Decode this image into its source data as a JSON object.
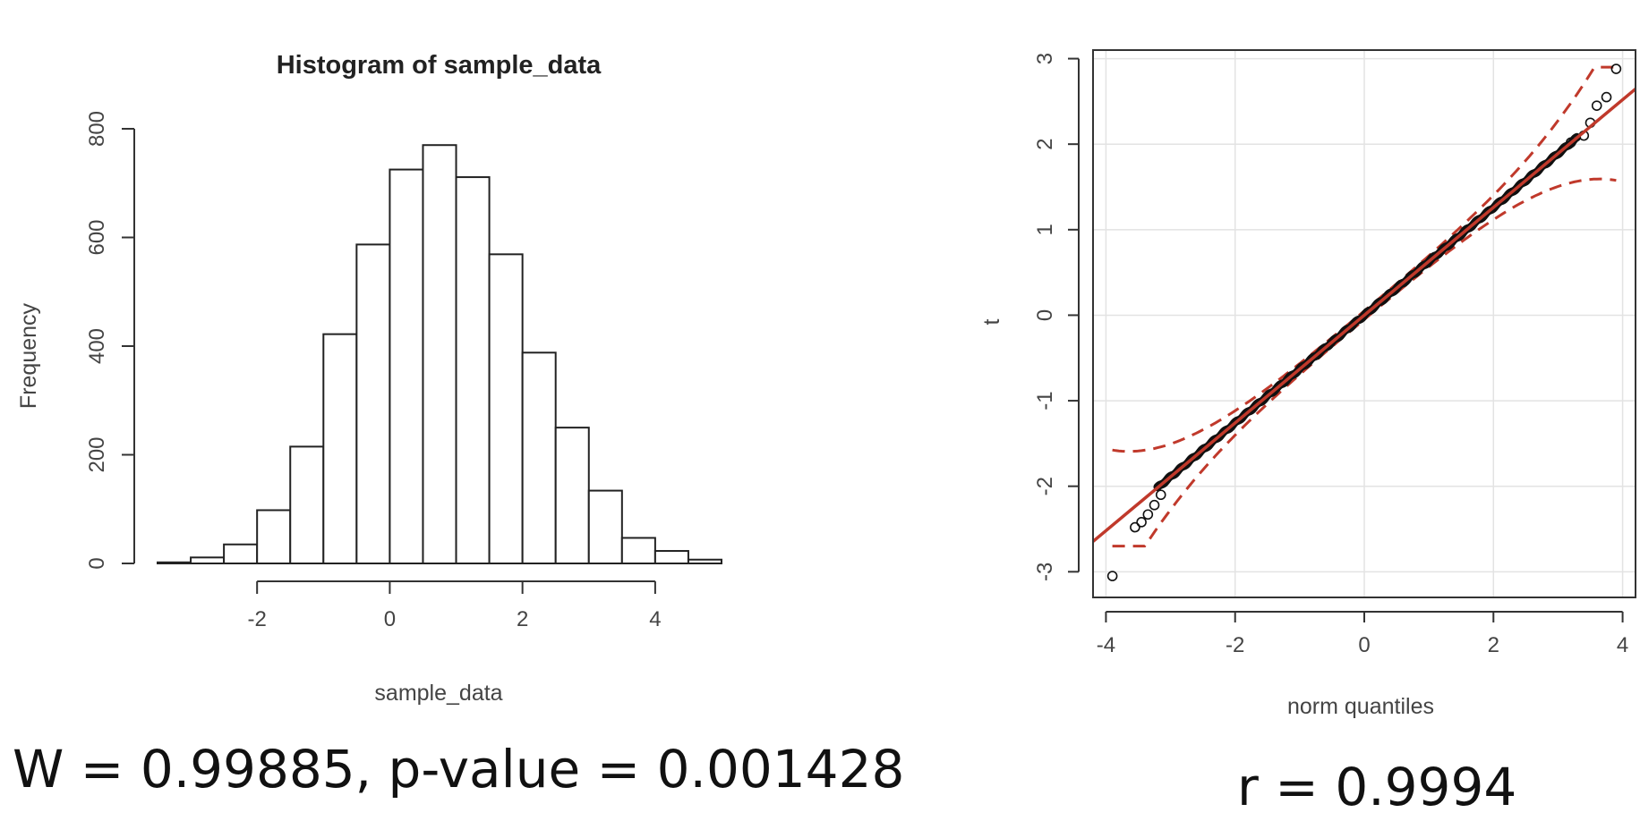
{
  "chart_data": [
    {
      "type": "bar",
      "title": "Histogram of sample_data",
      "xlabel": "sample_data",
      "ylabel": "Frequency",
      "xlim": [
        -3.5,
        5.0
      ],
      "ylim": [
        0,
        800
      ],
      "xticks": [
        "-2",
        "0",
        "2",
        "4"
      ],
      "yticks": [
        "0",
        "200",
        "400",
        "600",
        "800"
      ],
      "bins": [
        {
          "x0": -3.5,
          "x1": -3.0,
          "count": 2
        },
        {
          "x0": -3.0,
          "x1": -2.5,
          "count": 11
        },
        {
          "x0": -2.5,
          "x1": -2.0,
          "count": 35
        },
        {
          "x0": -2.0,
          "x1": -1.5,
          "count": 98
        },
        {
          "x0": -1.5,
          "x1": -1.0,
          "count": 215
        },
        {
          "x0": -1.0,
          "x1": -0.5,
          "count": 422
        },
        {
          "x0": -0.5,
          "x1": 0.0,
          "count": 587
        },
        {
          "x0": 0.0,
          "x1": 0.5,
          "count": 725
        },
        {
          "x0": 0.5,
          "x1": 1.0,
          "count": 770
        },
        {
          "x0": 1.0,
          "x1": 1.5,
          "count": 711
        },
        {
          "x0": 1.5,
          "x1": 2.0,
          "count": 569
        },
        {
          "x0": 2.0,
          "x1": 2.5,
          "count": 388
        },
        {
          "x0": 2.5,
          "x1": 3.0,
          "count": 250
        },
        {
          "x0": 3.0,
          "x1": 3.5,
          "count": 134
        },
        {
          "x0": 3.5,
          "x1": 4.0,
          "count": 47
        },
        {
          "x0": 4.0,
          "x1": 4.5,
          "count": 23
        },
        {
          "x0": 4.5,
          "x1": 5.0,
          "count": 7
        }
      ]
    },
    {
      "type": "scatter",
      "title": "",
      "xlabel": "norm quantiles",
      "ylabel": "t",
      "xlim": [
        -4.2,
        4.2
      ],
      "ylim": [
        -3.3,
        3.1
      ],
      "xticks": [
        "-4",
        "-2",
        "0",
        "2",
        "4"
      ],
      "yticks": [
        "-3",
        "-2",
        "-1",
        "0",
        "1",
        "2",
        "3"
      ],
      "grid": true,
      "reference_line": {
        "slope": 0.63,
        "intercept": 0.0,
        "color": "#c0392b"
      },
      "envelope": {
        "color": "#c0392b",
        "style": "dashed"
      },
      "points_main": {
        "x_from": -3.2,
        "x_to": 3.3
      },
      "tail_points": [
        {
          "x": -3.9,
          "y": -3.05
        },
        {
          "x": -3.55,
          "y": -2.48
        },
        {
          "x": -3.45,
          "y": -2.42
        },
        {
          "x": -3.35,
          "y": -2.33
        },
        {
          "x": -3.25,
          "y": -2.22
        },
        {
          "x": -3.15,
          "y": -2.1
        },
        {
          "x": 3.2,
          "y": 2.02
        },
        {
          "x": 3.4,
          "y": 2.1
        },
        {
          "x": 3.5,
          "y": 2.25
        },
        {
          "x": 3.6,
          "y": 2.45
        },
        {
          "x": 3.75,
          "y": 2.55
        },
        {
          "x": 3.9,
          "y": 2.88
        }
      ]
    }
  ],
  "stats": {
    "shapiro": "W = 0.99885, p-value = 0.001428",
    "correlation": "r = 0.9994"
  }
}
